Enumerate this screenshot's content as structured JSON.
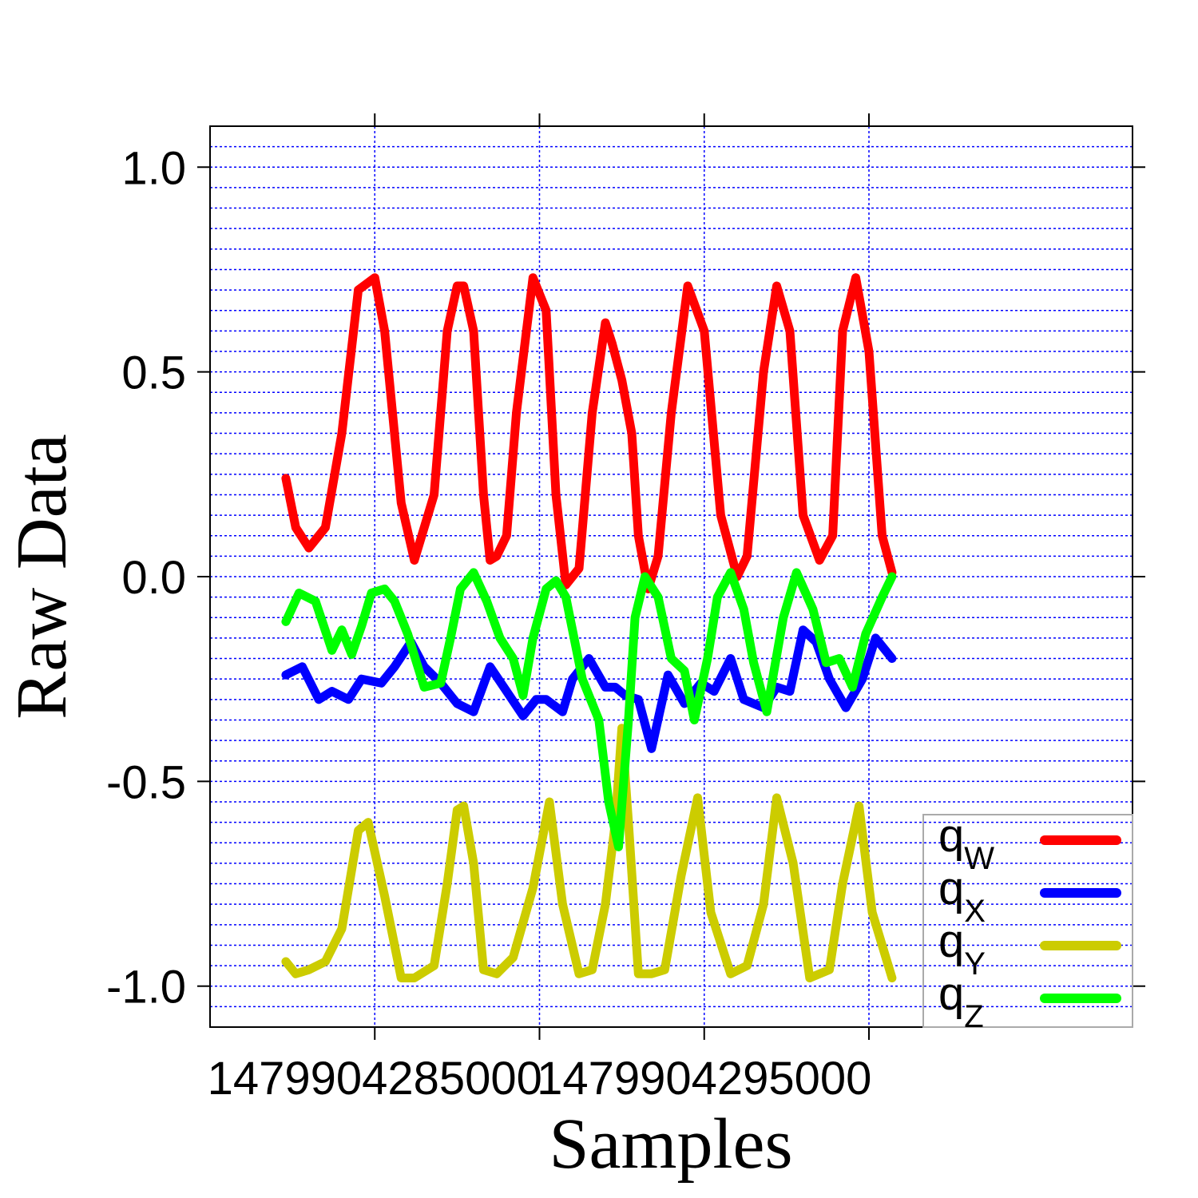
{
  "chart_data": {
    "type": "line",
    "xlabel": "Samples",
    "ylabel": "Raw Data",
    "xlim": [
      1479904280000,
      1479904308000
    ],
    "ylim": [
      -1.1,
      1.1
    ],
    "x_ticks": [
      1479904285000,
      1479904290000,
      1479904295000,
      1479904300000
    ],
    "x_tick_labels": [
      "1479904285000",
      "",
      "1479904295000",
      ""
    ],
    "y_ticks": [
      -1.0,
      -0.5,
      0.0,
      0.5,
      1.0
    ],
    "y_tick_labels": [
      "-1.0",
      "-0.5",
      "0.0",
      "0.5",
      "1.0"
    ],
    "minor_y_step": 0.05,
    "grid": true,
    "legend_position": "bottom-right",
    "series": [
      {
        "name": "qw",
        "legend_main": "q",
        "legend_sub": "W",
        "color": "#ff0000",
        "x": [
          1479904282300,
          1479904282600,
          1479904283000,
          1479904283500,
          1479904284000,
          1479904284500,
          1479904285000,
          1479904285300,
          1479904285800,
          1479904286200,
          1479904286800,
          1479904287200,
          1479904287500,
          1479904287700,
          1479904288000,
          1479904288300,
          1479904288500,
          1479904288700,
          1479904289000,
          1479904289300,
          1479904289800,
          1479904290200,
          1479904290500,
          1479904290800,
          1479904291200,
          1479904291600,
          1479904292000,
          1479904292200,
          1479904292500,
          1479904292800,
          1479904293000,
          1479904293300,
          1479904293600,
          1479904294000,
          1479904294500,
          1479904295000,
          1479904295500,
          1479904296000,
          1479904296300,
          1479904296800,
          1479904297200,
          1479904297600,
          1479904298000,
          1479904298500,
          1479904298900,
          1479904299200,
          1479904299600,
          1479904300000,
          1479904300400,
          1479904300700
        ],
        "values": [
          0.24,
          0.12,
          0.07,
          0.12,
          0.35,
          0.7,
          0.73,
          0.6,
          0.18,
          0.04,
          0.2,
          0.6,
          0.71,
          0.71,
          0.6,
          0.2,
          0.04,
          0.05,
          0.1,
          0.4,
          0.73,
          0.65,
          0.2,
          -0.02,
          0.02,
          0.4,
          0.62,
          0.57,
          0.48,
          0.35,
          0.1,
          -0.03,
          0.05,
          0.4,
          0.71,
          0.6,
          0.15,
          0.0,
          0.05,
          0.5,
          0.71,
          0.6,
          0.15,
          0.04,
          0.1,
          0.6,
          0.73,
          0.55,
          0.1,
          0.01
        ]
      },
      {
        "name": "qx",
        "legend_main": "q",
        "legend_sub": "X",
        "color": "#0000ff",
        "x": [
          1479904282300,
          1479904282800,
          1479904283300,
          1479904283700,
          1479904284200,
          1479904284600,
          1479904285200,
          1479904285600,
          1479904286100,
          1479904286500,
          1479904287000,
          1479904287500,
          1479904288000,
          1479904288500,
          1479904289000,
          1479904289500,
          1479904289900,
          1479904290200,
          1479904290700,
          1479904291000,
          1479904291500,
          1479904292000,
          1479904292300,
          1479904292600,
          1479904293000,
          1479904293400,
          1479904293900,
          1479904294400,
          1479904294900,
          1479904295300,
          1479904295800,
          1479904296200,
          1479904296800,
          1479904297200,
          1479904297600,
          1479904298000,
          1479904298400,
          1479904298800,
          1479904299300,
          1479904299800,
          1479904300200,
          1479904300700
        ],
        "values": [
          -0.24,
          -0.22,
          -0.3,
          -0.28,
          -0.3,
          -0.25,
          -0.26,
          -0.22,
          -0.16,
          -0.22,
          -0.26,
          -0.31,
          -0.33,
          -0.22,
          -0.28,
          -0.34,
          -0.3,
          -0.3,
          -0.33,
          -0.25,
          -0.2,
          -0.27,
          -0.27,
          -0.29,
          -0.3,
          -0.42,
          -0.24,
          -0.31,
          -0.26,
          -0.28,
          -0.2,
          -0.3,
          -0.32,
          -0.27,
          -0.28,
          -0.13,
          -0.16,
          -0.25,
          -0.32,
          -0.25,
          -0.15,
          -0.2
        ]
      },
      {
        "name": "qy",
        "legend_main": "q",
        "legend_sub": "Y",
        "color": "#cccc00",
        "x": [
          1479904282300,
          1479904282600,
          1479904283000,
          1479904283500,
          1479904284000,
          1479904284500,
          1479904284800,
          1479904285300,
          1479904285800,
          1479904286200,
          1479904286800,
          1479904287200,
          1479904287500,
          1479904287700,
          1479904288000,
          1479904288300,
          1479904288700,
          1479904289200,
          1479904289800,
          1479904290300,
          1479904290700,
          1479904291200,
          1479904291600,
          1479904292000,
          1479904292300,
          1479904292500,
          1479904292700,
          1479904293000,
          1479904293400,
          1479904293800,
          1479904294300,
          1479904294800,
          1479904295200,
          1479904295800,
          1479904296300,
          1479904296800,
          1479904297200,
          1479904297700,
          1479904298200,
          1479904298800,
          1479904299200,
          1479904299700,
          1479904300100,
          1479904300700
        ],
        "values": [
          -0.94,
          -0.97,
          -0.96,
          -0.94,
          -0.86,
          -0.62,
          -0.6,
          -0.78,
          -0.98,
          -0.98,
          -0.95,
          -0.75,
          -0.57,
          -0.56,
          -0.7,
          -0.96,
          -0.97,
          -0.93,
          -0.76,
          -0.55,
          -0.8,
          -0.97,
          -0.96,
          -0.8,
          -0.6,
          -0.37,
          -0.6,
          -0.97,
          -0.97,
          -0.96,
          -0.73,
          -0.54,
          -0.82,
          -0.97,
          -0.95,
          -0.8,
          -0.54,
          -0.7,
          -0.98,
          -0.96,
          -0.75,
          -0.56,
          -0.82,
          -0.98
        ]
      },
      {
        "name": "qz",
        "legend_main": "q",
        "legend_sub": "Z",
        "color": "#00ff00",
        "x": [
          1479904282300,
          1479904282700,
          1479904283200,
          1479904283700,
          1479904284000,
          1479904284300,
          1479904284600,
          1479904284900,
          1479904285300,
          1479904285600,
          1479904286000,
          1479904286500,
          1479904287000,
          1479904287300,
          1479904287600,
          1479904288000,
          1479904288400,
          1479904288800,
          1479904289200,
          1479904289500,
          1479904289800,
          1479904290200,
          1479904290500,
          1479904290800,
          1479904291300,
          1479904291800,
          1479904292100,
          1479904292400,
          1479904292700,
          1479904292900,
          1479904293200,
          1479904293600,
          1479904294000,
          1479904294400,
          1479904294700,
          1479904295100,
          1479904295400,
          1479904295800,
          1479904296200,
          1479904296500,
          1479904296900,
          1479904297400,
          1479904297800,
          1479904298300,
          1479904298700,
          1479904299100,
          1479904299500,
          1479904299900,
          1479904300400,
          1479904300700
        ],
        "values": [
          -0.11,
          -0.04,
          -0.06,
          -0.18,
          -0.13,
          -0.19,
          -0.12,
          -0.04,
          -0.03,
          -0.06,
          -0.14,
          -0.27,
          -0.26,
          -0.15,
          -0.03,
          0.01,
          -0.06,
          -0.15,
          -0.2,
          -0.29,
          -0.15,
          -0.03,
          -0.01,
          -0.05,
          -0.25,
          -0.35,
          -0.55,
          -0.66,
          -0.35,
          -0.1,
          0.0,
          -0.05,
          -0.2,
          -0.23,
          -0.35,
          -0.2,
          -0.05,
          0.01,
          -0.08,
          -0.21,
          -0.33,
          -0.1,
          0.01,
          -0.08,
          -0.21,
          -0.2,
          -0.27,
          -0.14,
          -0.05,
          0.0
        ]
      }
    ]
  }
}
